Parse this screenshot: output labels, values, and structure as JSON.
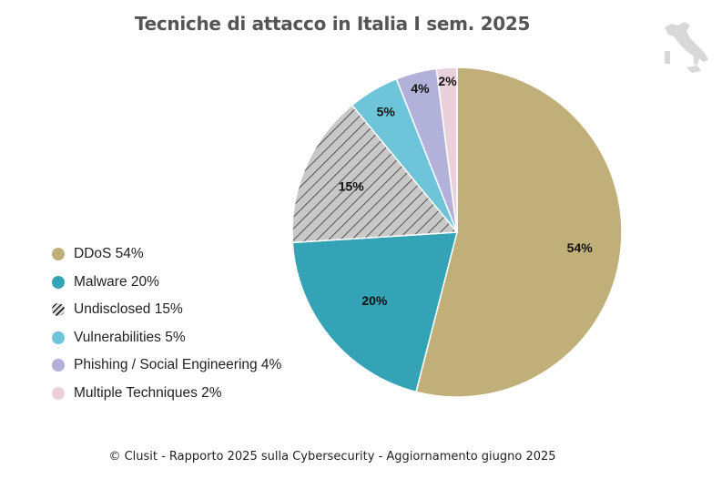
{
  "chart_data": {
    "type": "pie",
    "title": "Tecniche di attacco in Italia I sem. 2025",
    "start": "top",
    "direction": "clockwise",
    "legend_position": "left",
    "slices": [
      {
        "label": "DDoS",
        "value": 54,
        "data_label": "54%",
        "legend": "DDoS 54%",
        "color": "#c0af79",
        "pattern": "solid"
      },
      {
        "label": "Malware",
        "value": 20,
        "data_label": "20%",
        "legend": "Malware 20%",
        "color": "#33a3b5",
        "pattern": "solid"
      },
      {
        "label": "Undisclosed",
        "value": 15,
        "data_label": "15%",
        "legend": "Undisclosed 15%",
        "color": "#c8c8c8",
        "pattern": "diagonal-hatch"
      },
      {
        "label": "Vulnerabilities",
        "value": 5,
        "data_label": "5%",
        "legend": "Vulnerabilities 5%",
        "color": "#6ec5d9",
        "pattern": "solid"
      },
      {
        "label": "Phishing / Social Engineering",
        "value": 4,
        "data_label": "4%",
        "legend": "Phishing / Social Engineering 4%",
        "color": "#b1b1da",
        "pattern": "solid"
      },
      {
        "label": "Multiple Techniques",
        "value": 2,
        "data_label": "2%",
        "legend": "Multiple Techniques 2%",
        "color": "#ead0da",
        "pattern": "solid"
      }
    ]
  },
  "footer": "© Clusit - Rapporto 2025 sulla Cybersecurity - Aggiornamento giugno 2025",
  "logo_icon": "italy-map-icon"
}
